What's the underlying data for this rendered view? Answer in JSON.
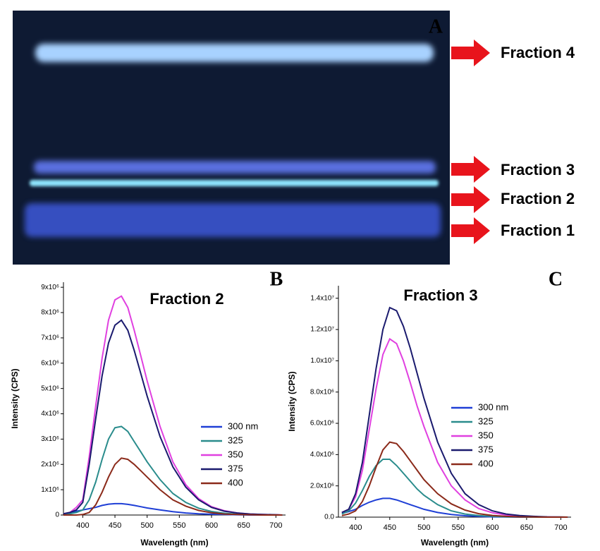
{
  "panel_a": {
    "label": "A",
    "fractions": [
      "Fraction 4",
      "Fraction 3",
      "Fraction 2",
      "Fraction 1"
    ]
  },
  "chart_data": [
    {
      "type": "line",
      "panel_label": "B",
      "title": "Fraction 2",
      "x_label": "Wavelength (nm)",
      "y_label": "Intensity (CPS)",
      "x": [
        370,
        380,
        390,
        400,
        410,
        420,
        430,
        440,
        450,
        460,
        470,
        480,
        490,
        500,
        520,
        540,
        560,
        580,
        600,
        620,
        640,
        660,
        680,
        700,
        710
      ],
      "series": [
        {
          "name": "300 nm",
          "color": "#1f3fd6",
          "values": [
            20000,
            50000,
            150000,
            200000,
            250000,
            300000,
            380000,
            430000,
            450000,
            450000,
            420000,
            380000,
            330000,
            280000,
            200000,
            130000,
            80000,
            50000,
            30000,
            20000,
            10000,
            0,
            0,
            0,
            0
          ]
        },
        {
          "name": "325",
          "color": "#2a8c8c",
          "values": [
            20000,
            50000,
            100000,
            200000,
            600000,
            1300000,
            2200000,
            3000000,
            3450000,
            3500000,
            3300000,
            2900000,
            2500000,
            2100000,
            1400000,
            850000,
            500000,
            270000,
            140000,
            70000,
            30000,
            20000,
            10000,
            0,
            0
          ]
        },
        {
          "name": "350",
          "color": "#e040e0",
          "values": [
            50000,
            100000,
            300000,
            600000,
            2300000,
            4300000,
            6200000,
            7700000,
            8500000,
            8650000,
            8200000,
            7300000,
            6300000,
            5300000,
            3500000,
            2100000,
            1200000,
            650000,
            330000,
            170000,
            80000,
            40000,
            20000,
            10000,
            0
          ]
        },
        {
          "name": "375",
          "color": "#1a1a6e",
          "values": [
            50000,
            100000,
            200000,
            500000,
            2000000,
            3800000,
            5500000,
            6800000,
            7500000,
            7700000,
            7300000,
            6500000,
            5600000,
            4700000,
            3100000,
            1900000,
            1100000,
            600000,
            300000,
            150000,
            80000,
            40000,
            20000,
            10000,
            0
          ]
        },
        {
          "name": "400",
          "color": "#8b2a1a",
          "values": [
            0,
            0,
            0,
            20000,
            100000,
            400000,
            900000,
            1500000,
            2000000,
            2250000,
            2200000,
            2000000,
            1750000,
            1500000,
            1000000,
            600000,
            350000,
            180000,
            90000,
            40000,
            20000,
            10000,
            0,
            0,
            0
          ]
        }
      ],
      "xlim": [
        370,
        715
      ],
      "xticks": [
        400,
        450,
        500,
        550,
        600,
        650,
        700
      ],
      "ylim": [
        0,
        9200000
      ],
      "yticks": [
        0,
        {
          "value": 1000000,
          "label": "1x10⁶"
        },
        {
          "value": 2000000,
          "label": "2x10⁶"
        },
        {
          "value": 3000000,
          "label": "3x10⁶"
        },
        {
          "value": 4000000,
          "label": "4x10⁶"
        },
        {
          "value": 5000000,
          "label": "5x10⁶"
        },
        {
          "value": 6000000,
          "label": "6x10⁶"
        },
        {
          "value": 7000000,
          "label": "7x10⁶"
        },
        {
          "value": 8000000,
          "label": "8x10⁶"
        },
        {
          "value": 9000000,
          "label": "9x10⁶"
        }
      ]
    },
    {
      "type": "line",
      "panel_label": "C",
      "title": "Fraction 3",
      "x_label": "Wavelength (nm)",
      "y_label": "Intensity (CPS)",
      "x": [
        380,
        390,
        400,
        410,
        420,
        430,
        440,
        450,
        460,
        470,
        480,
        490,
        500,
        520,
        540,
        560,
        580,
        600,
        620,
        640,
        660,
        680,
        700,
        710
      ],
      "series": [
        {
          "name": "300 nm",
          "color": "#1f3fd6",
          "values": [
            250000,
            350000,
            500000,
            750000,
            950000,
            1100000,
            1200000,
            1200000,
            1100000,
            950000,
            800000,
            650000,
            500000,
            300000,
            170000,
            90000,
            50000,
            20000,
            10000,
            0,
            0,
            0,
            0,
            0
          ]
        },
        {
          "name": "325",
          "color": "#2a8c8c",
          "values": [
            200000,
            400000,
            900000,
            1700000,
            2600000,
            3300000,
            3700000,
            3700000,
            3300000,
            2800000,
            2300000,
            1800000,
            1400000,
            800000,
            400000,
            200000,
            100000,
            50000,
            20000,
            10000,
            0,
            0,
            0,
            0
          ]
        },
        {
          "name": "350",
          "color": "#e040e0",
          "values": [
            300000,
            500000,
            1300000,
            3000000,
            5600000,
            8200000,
            10400000,
            11400000,
            11100000,
            10000000,
            8600000,
            7100000,
            5800000,
            3500000,
            2000000,
            1100000,
            550000,
            280000,
            140000,
            70000,
            30000,
            10000,
            0,
            0
          ]
        },
        {
          "name": "375",
          "color": "#1a1a6e",
          "values": [
            300000,
            500000,
            1500000,
            3500000,
            6500000,
            9500000,
            12000000,
            13400000,
            13200000,
            12200000,
            10800000,
            9200000,
            7600000,
            4800000,
            2800000,
            1500000,
            800000,
            400000,
            200000,
            100000,
            50000,
            20000,
            10000,
            0
          ]
        },
        {
          "name": "400",
          "color": "#8b2a1a",
          "values": [
            100000,
            200000,
            400000,
            1000000,
            2000000,
            3200000,
            4300000,
            4800000,
            4700000,
            4200000,
            3600000,
            3000000,
            2400000,
            1500000,
            850000,
            450000,
            220000,
            110000,
            50000,
            20000,
            10000,
            0,
            0,
            0
          ]
        }
      ],
      "xlim": [
        375,
        715
      ],
      "xticks": [
        400,
        450,
        500,
        550,
        600,
        650,
        700
      ],
      "ylim": [
        0,
        14800000
      ],
      "yticks": [
        {
          "value": 0,
          "label": "0.0"
        },
        {
          "value": 2000000,
          "label": "2.0x10⁶"
        },
        {
          "value": 4000000,
          "label": "4.0x10⁶"
        },
        {
          "value": 6000000,
          "label": "6.0x10⁶"
        },
        {
          "value": 8000000,
          "label": "8.0x10⁶"
        },
        {
          "value": 10000000,
          "label": "1.0x10⁷"
        },
        {
          "value": 12000000,
          "label": "1.2x10⁷"
        },
        {
          "value": 14000000,
          "label": "1.4x10⁷"
        }
      ]
    }
  ]
}
